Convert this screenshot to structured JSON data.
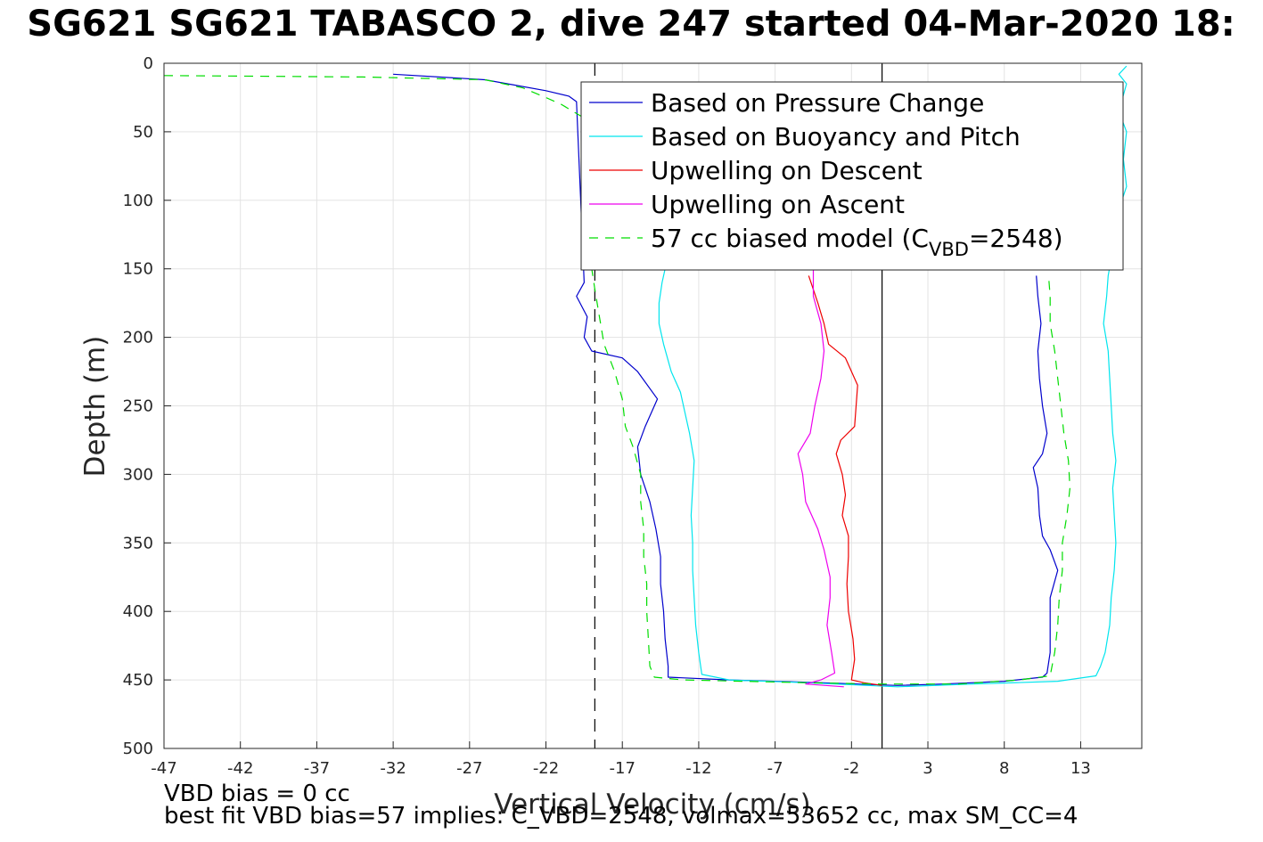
{
  "page_title": "SG621 SG621 TABASCO 2, dive 247 started 04-Mar-2020 18:",
  "footer": {
    "line1": "VBD bias = 0 cc",
    "line2": "best fit VBD bias=57 implies: C_VBD=2548, volmax=53652 cc, max SM_CC=4"
  },
  "chart_data": {
    "type": "line",
    "title": "SG621 SG621 TABASCO 2, dive 247 started 04-Mar-2020 18:",
    "xlabel": "Vertical Velocity (cm/s)",
    "ylabel": "Depth (m)",
    "xlim": [
      -47,
      17
    ],
    "ylim": [
      500,
      0
    ],
    "y_reversed": true,
    "grid": true,
    "xticks": [
      -47,
      -42,
      -37,
      -32,
      -27,
      -22,
      -17,
      -12,
      -7,
      -2,
      3,
      8,
      13
    ],
    "xtick_labels": [
      "-47",
      "-42",
      "-37",
      "-32",
      "-27",
      "-22",
      "-17",
      "-12",
      "-7",
      "-2",
      "3",
      "8",
      "13"
    ],
    "yticks": [
      0,
      50,
      100,
      150,
      200,
      250,
      300,
      350,
      400,
      450,
      500
    ],
    "ytick_labels": [
      "0",
      "50",
      "100",
      "150",
      "200",
      "250",
      "300",
      "350",
      "400",
      "450",
      "500"
    ],
    "legend_position": "top-right",
    "reference_lines": [
      {
        "x": -18.8,
        "style": "dashed",
        "color": "#000000"
      },
      {
        "x": 0,
        "style": "solid",
        "color": "#000000"
      }
    ],
    "series": [
      {
        "name": "Based on Pressure Change",
        "color": "#0000cc",
        "dash": "",
        "points": [
          [
            -32,
            8
          ],
          [
            -26,
            12
          ],
          [
            -24,
            16
          ],
          [
            -22,
            20
          ],
          [
            -20.5,
            24
          ],
          [
            -20,
            28
          ],
          [
            -19.5,
            160
          ],
          [
            -20,
            170
          ],
          [
            -19.3,
            185
          ],
          [
            -19.5,
            200
          ],
          [
            -19,
            210
          ],
          [
            -17,
            215
          ],
          [
            -16,
            225
          ],
          [
            -14.7,
            245
          ],
          [
            -15.5,
            265
          ],
          [
            -16,
            280
          ],
          [
            -15.8,
            300
          ],
          [
            -15.2,
            320
          ],
          [
            -14.8,
            340
          ],
          [
            -14.5,
            360
          ],
          [
            -14.5,
            380
          ],
          [
            -14.3,
            400
          ],
          [
            -14.2,
            420
          ],
          [
            -14,
            440
          ],
          [
            -14,
            448
          ],
          [
            -10,
            450
          ],
          [
            -4,
            452
          ],
          [
            1,
            454
          ],
          [
            4,
            453
          ],
          [
            8,
            451
          ],
          [
            10.5,
            448
          ],
          [
            10.8,
            445
          ],
          [
            11,
            430
          ],
          [
            11,
            410
          ],
          [
            11,
            390
          ],
          [
            11.5,
            370
          ],
          [
            11,
            355
          ],
          [
            10.5,
            345
          ],
          [
            10.3,
            330
          ],
          [
            10.2,
            310
          ],
          [
            9.9,
            295
          ],
          [
            10.5,
            285
          ],
          [
            10.8,
            270
          ],
          [
            10.5,
            250
          ],
          [
            10.3,
            230
          ],
          [
            10.2,
            210
          ],
          [
            10.4,
            190
          ],
          [
            10.2,
            170
          ],
          [
            10.1,
            155
          ]
        ]
      },
      {
        "name": "Based on Buoyancy and Pitch",
        "color": "#00e5ee",
        "dash": "",
        "points": [
          [
            16,
            2
          ],
          [
            15.5,
            8
          ],
          [
            16,
            15
          ],
          [
            15.5,
            35
          ],
          [
            16,
            50
          ],
          [
            15.8,
            70
          ],
          [
            16,
            90
          ],
          [
            15.7,
            100
          ],
          [
            14.8,
            155
          ],
          [
            14.7,
            170
          ],
          [
            14.5,
            190
          ],
          [
            14.8,
            210
          ],
          [
            14.9,
            230
          ],
          [
            15,
            250
          ],
          [
            15.1,
            270
          ],
          [
            15.3,
            290
          ],
          [
            15.1,
            310
          ],
          [
            15.2,
            330
          ],
          [
            15.3,
            350
          ],
          [
            15.2,
            370
          ],
          [
            15,
            390
          ],
          [
            14.9,
            410
          ],
          [
            14.6,
            430
          ],
          [
            14.3,
            440
          ],
          [
            14,
            447
          ],
          [
            11.5,
            451
          ],
          [
            6,
            453
          ],
          [
            1,
            455
          ],
          [
            -5,
            452
          ],
          [
            -10,
            450
          ],
          [
            -11.8,
            446
          ],
          [
            -12,
            430
          ],
          [
            -12.2,
            410
          ],
          [
            -12.3,
            390
          ],
          [
            -12.4,
            370
          ],
          [
            -12.4,
            350
          ],
          [
            -12.5,
            330
          ],
          [
            -12.4,
            310
          ],
          [
            -12.3,
            290
          ],
          [
            -12.6,
            270
          ],
          [
            -12.9,
            255
          ],
          [
            -13.2,
            240
          ],
          [
            -13.8,
            225
          ],
          [
            -14.3,
            205
          ],
          [
            -14.6,
            190
          ],
          [
            -14.6,
            175
          ],
          [
            -14.4,
            160
          ],
          [
            -14.2,
            150
          ]
        ]
      },
      {
        "name": "Upwelling on Descent",
        "color": "#ee0000",
        "dash": "",
        "points": [
          [
            -4.8,
            155
          ],
          [
            -4.2,
            175
          ],
          [
            -3.8,
            190
          ],
          [
            -3.5,
            205
          ],
          [
            -2.4,
            215
          ],
          [
            -1.6,
            235
          ],
          [
            -1.7,
            250
          ],
          [
            -1.8,
            265
          ],
          [
            -2.7,
            275
          ],
          [
            -3,
            285
          ],
          [
            -2.6,
            300
          ],
          [
            -2.4,
            315
          ],
          [
            -2.6,
            330
          ],
          [
            -2.2,
            345
          ],
          [
            -2.2,
            360
          ],
          [
            -2.3,
            380
          ],
          [
            -2.2,
            400
          ],
          [
            -1.9,
            420
          ],
          [
            -1.8,
            435
          ],
          [
            -2,
            450
          ],
          [
            -1.2,
            452
          ],
          [
            0,
            454
          ]
        ]
      },
      {
        "name": "Upwelling on Ascent",
        "color": "#ee00ee",
        "dash": "",
        "points": [
          [
            -4.5,
            150
          ],
          [
            -4.5,
            170
          ],
          [
            -4,
            190
          ],
          [
            -3.8,
            210
          ],
          [
            -4,
            230
          ],
          [
            -4.4,
            250
          ],
          [
            -4.7,
            270
          ],
          [
            -5.5,
            285
          ],
          [
            -5.2,
            300
          ],
          [
            -5,
            320
          ],
          [
            -4.2,
            340
          ],
          [
            -3.8,
            355
          ],
          [
            -3.4,
            375
          ],
          [
            -3.4,
            390
          ],
          [
            -3.6,
            410
          ],
          [
            -3.3,
            430
          ],
          [
            -3.1,
            445
          ],
          [
            -4,
            450
          ],
          [
            -5,
            453
          ],
          [
            -2.5,
            455
          ]
        ]
      },
      {
        "name": "57 cc biased model (C_VBD=2548)",
        "color": "#00dd00",
        "dash": "10,8",
        "points": [
          [
            -47,
            9
          ],
          [
            -34,
            10
          ],
          [
            -26,
            12
          ],
          [
            -23.5,
            18
          ],
          [
            -22,
            25
          ],
          [
            -21,
            30
          ],
          [
            -19.5,
            40
          ],
          [
            -19,
            150
          ],
          [
            -18.8,
            165
          ],
          [
            -18.5,
            185
          ],
          [
            -18.2,
            205
          ],
          [
            -17.5,
            225
          ],
          [
            -17,
            245
          ],
          [
            -16.8,
            265
          ],
          [
            -16.3,
            280
          ],
          [
            -15.8,
            300
          ],
          [
            -15.8,
            320
          ],
          [
            -15.6,
            340
          ],
          [
            -15.6,
            360
          ],
          [
            -15.4,
            380
          ],
          [
            -15.4,
            400
          ],
          [
            -15.3,
            420
          ],
          [
            -15.2,
            440
          ],
          [
            -14.9,
            448
          ],
          [
            -13,
            450
          ],
          [
            -5,
            452
          ],
          [
            0,
            453
          ],
          [
            5,
            453
          ],
          [
            9,
            450
          ],
          [
            11,
            447
          ],
          [
            11.3,
            430
          ],
          [
            11.5,
            410
          ],
          [
            11.6,
            390
          ],
          [
            11.8,
            370
          ],
          [
            11.8,
            350
          ],
          [
            12.1,
            330
          ],
          [
            12.3,
            310
          ],
          [
            12.2,
            290
          ],
          [
            11.9,
            270
          ],
          [
            11.7,
            250
          ],
          [
            11.5,
            230
          ],
          [
            11.3,
            210
          ],
          [
            11,
            190
          ],
          [
            11,
            170
          ],
          [
            10.9,
            155
          ]
        ]
      }
    ]
  },
  "legend": {
    "items": [
      {
        "label": "Based on Pressure Change",
        "color": "#0000cc",
        "dash": ""
      },
      {
        "label": "Based on Buoyancy and Pitch",
        "color": "#00e5ee",
        "dash": ""
      },
      {
        "label": "Upwelling on Descent",
        "color": "#ee0000",
        "dash": ""
      },
      {
        "label": "Upwelling on Ascent",
        "color": "#ee00ee",
        "dash": ""
      },
      {
        "label": "57 cc biased model (C",
        "sub": "VBD",
        "suffix": "=2548)",
        "color": "#00dd00",
        "dash": "10,8"
      }
    ]
  }
}
